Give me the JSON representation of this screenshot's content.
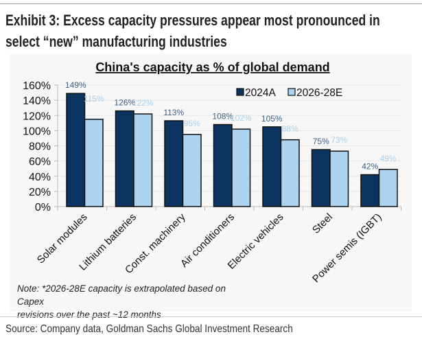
{
  "header": {
    "exhibit_title_line1": "Exhibit 3: Excess capacity pressures appear most pronounced in",
    "exhibit_title_line2": "select “new” manufacturing industries"
  },
  "chart_data": {
    "type": "bar",
    "title": "China's capacity as % of global demand",
    "xlabel": "",
    "ylabel": "",
    "ylim": [
      0,
      160
    ],
    "yticks": [
      0,
      20,
      40,
      60,
      80,
      100,
      120,
      140,
      160
    ],
    "ytick_labels": [
      "0%",
      "20%",
      "40%",
      "60%",
      "80%",
      "100%",
      "120%",
      "140%",
      "160%"
    ],
    "grid": true,
    "legend_position": "top-right",
    "categories": [
      "Solar modules",
      "Lithium batteries",
      "Const. machinery",
      "Air conditioners",
      "Electric vehicles",
      "Steel",
      "Power semis (IGBT)"
    ],
    "series": [
      {
        "name": "2024A",
        "color": "#0b3560",
        "label_color": "#3e5f85",
        "values": [
          149,
          126,
          113,
          108,
          105,
          75,
          42
        ],
        "labels": [
          "149%",
          "126%",
          "113%",
          "108%",
          "105%",
          "75%",
          "42%"
        ]
      },
      {
        "name": "2026-28E",
        "color": "#acd3f0",
        "label_color": "#a9cfee",
        "values": [
          115,
          122,
          95,
          102,
          88,
          73,
          49
        ],
        "labels": [
          "115%",
          "122%",
          "95%",
          "102%",
          "88%",
          "73%",
          "49%"
        ]
      }
    ]
  },
  "note": {
    "line1": "Note: *2026-28E capacity is extrapolated based on Capex",
    "line2": "revisions over the past ~12 months"
  },
  "source": "Source: Company data, Goldman Sachs Global Investment Research"
}
